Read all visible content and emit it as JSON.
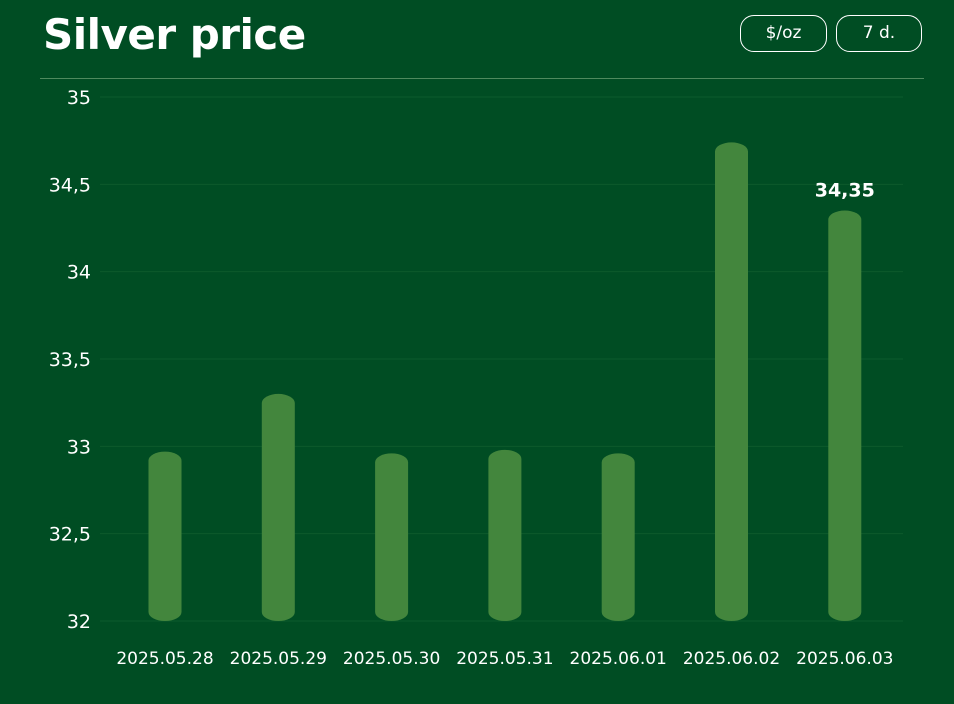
{
  "header": {
    "title": "Silver price",
    "unit_button": "$/oz",
    "range_button": "7 d."
  },
  "colors": {
    "background": "#004d23",
    "bar": "#43863d",
    "grid": "#0d5a2c",
    "text": "#ffffff"
  },
  "chart_data": {
    "type": "bar",
    "title": "Silver price",
    "xlabel": "",
    "ylabel": "",
    "categories": [
      "2025.05.28",
      "2025.05.29",
      "2025.05.30",
      "2025.05.31",
      "2025.06.01",
      "2025.06.02",
      "2025.06.03"
    ],
    "values": [
      32.97,
      33.3,
      32.96,
      32.98,
      32.96,
      34.74,
      34.35
    ],
    "ylim": [
      32,
      35
    ],
    "yticks": [
      "32",
      "32,5",
      "33",
      "33,5",
      "34",
      "34,5",
      "35"
    ],
    "annotation": {
      "category": "2025.06.03",
      "label": "34,35"
    },
    "grid": true,
    "legend": "none"
  }
}
